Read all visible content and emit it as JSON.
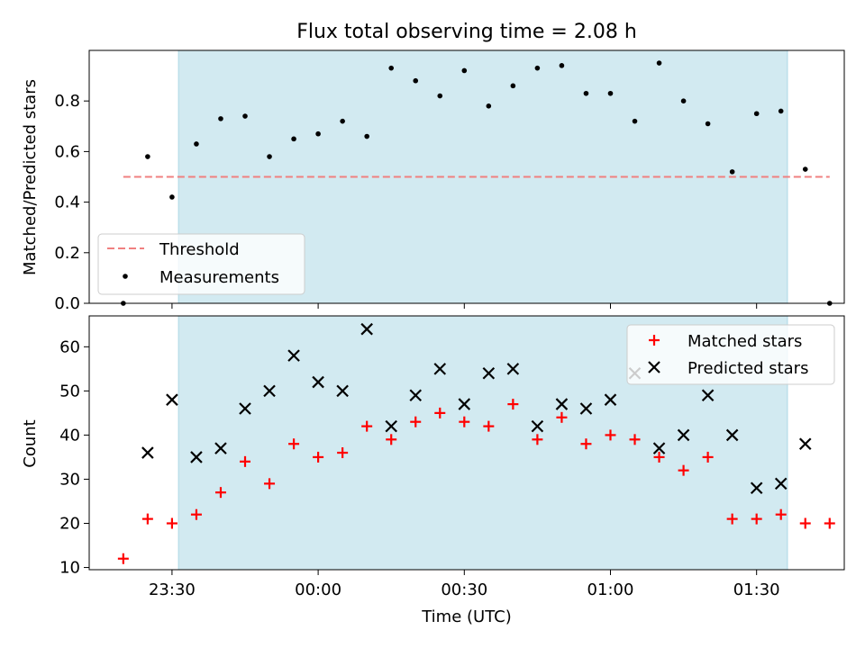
{
  "chart_data": [
    {
      "type": "scatter",
      "title": "Flux total observing time = 2.08 h",
      "xlabel": "",
      "ylabel": "Matched/Predicted stars",
      "x_is_time": true,
      "xlim": [
        "23:13",
        "01:48"
      ],
      "ylim": [
        0,
        1.0
      ],
      "yticks": [
        0.0,
        0.2,
        0.4,
        0.6,
        0.8
      ],
      "ytick_labels": [
        "0.0",
        "0.2",
        "0.4",
        "0.6",
        "0.8"
      ],
      "shaded_interval": [
        "23:31:20",
        "01:36:20"
      ],
      "legend_position": "lower-left",
      "series": [
        {
          "name": "Threshold",
          "style": "dashed-line",
          "color": "#f08080",
          "x": [
            "23:20",
            "01:45"
          ],
          "y": [
            0.5,
            0.5
          ]
        },
        {
          "name": "Measurements",
          "style": "dot",
          "color": "#000000",
          "x": [
            "23:20",
            "23:25",
            "23:30",
            "23:35",
            "23:40",
            "23:45",
            "23:50",
            "23:55",
            "00:00",
            "00:05",
            "00:10",
            "00:15",
            "00:20",
            "00:25",
            "00:30",
            "00:35",
            "00:40",
            "00:45",
            "00:50",
            "00:55",
            "01:00",
            "01:05",
            "01:10",
            "01:15",
            "01:20",
            "01:25",
            "01:30",
            "01:35",
            "01:40",
            "01:45"
          ],
          "y": [
            0.0,
            0.58,
            0.42,
            0.63,
            0.73,
            0.74,
            0.58,
            0.65,
            0.67,
            0.72,
            0.66,
            0.93,
            0.88,
            0.82,
            0.92,
            0.78,
            0.86,
            0.93,
            0.94,
            0.83,
            0.83,
            0.72,
            0.95,
            0.8,
            0.71,
            0.52,
            0.75,
            0.76,
            0.53,
            0.0
          ]
        }
      ]
    },
    {
      "type": "scatter",
      "title": "",
      "xlabel": "Time (UTC)",
      "ylabel": "Count",
      "x_is_time": true,
      "xlim": [
        "23:13",
        "01:48"
      ],
      "ylim": [
        9.5,
        67
      ],
      "yticks": [
        10,
        20,
        30,
        40,
        50,
        60
      ],
      "ytick_labels": [
        "10",
        "20",
        "30",
        "40",
        "50",
        "60"
      ],
      "xticks": [
        "23:30",
        "00:00",
        "00:30",
        "01:00",
        "01:30"
      ],
      "xtick_labels": [
        "23:30",
        "00:00",
        "00:30",
        "01:00",
        "01:30"
      ],
      "shaded_interval": [
        "23:31:20",
        "01:36:20"
      ],
      "legend_position": "upper-right",
      "series": [
        {
          "name": "Matched stars",
          "style": "plus",
          "color": "#ff0000",
          "x": [
            "23:20",
            "23:25",
            "23:30",
            "23:35",
            "23:40",
            "23:45",
            "23:50",
            "23:55",
            "00:00",
            "00:05",
            "00:10",
            "00:15",
            "00:20",
            "00:25",
            "00:30",
            "00:35",
            "00:40",
            "00:45",
            "00:50",
            "00:55",
            "01:00",
            "01:05",
            "01:10",
            "01:15",
            "01:20",
            "01:25",
            "01:30",
            "01:35",
            "01:40",
            "01:45"
          ],
          "y": [
            12,
            21,
            20,
            22,
            27,
            34,
            29,
            38,
            35,
            36,
            42,
            39,
            43,
            45,
            43,
            42,
            47,
            39,
            44,
            38,
            40,
            39,
            35,
            32,
            35,
            21,
            21,
            22,
            20,
            20
          ]
        },
        {
          "name": "Predicted stars",
          "style": "x",
          "color": "#000000",
          "x": [
            "23:25",
            "23:30",
            "23:35",
            "23:40",
            "23:45",
            "23:50",
            "23:55",
            "00:00",
            "00:05",
            "00:10",
            "00:15",
            "00:20",
            "00:25",
            "00:30",
            "00:35",
            "00:40",
            "00:45",
            "00:50",
            "00:55",
            "01:00",
            "01:05",
            "01:10",
            "01:15",
            "01:20",
            "01:25",
            "01:30",
            "01:35",
            "01:40"
          ],
          "y": [
            36,
            48,
            35,
            37,
            46,
            50,
            58,
            52,
            50,
            64,
            42,
            49,
            55,
            47,
            54,
            55,
            42,
            47,
            46,
            48,
            54,
            37,
            40,
            49,
            40,
            28,
            29,
            38
          ]
        }
      ]
    }
  ],
  "colors": {
    "shade": "#add8e6",
    "threshold": "#f08080",
    "matched": "#ff0000",
    "predicted": "#000000",
    "measurement": "#000000"
  }
}
